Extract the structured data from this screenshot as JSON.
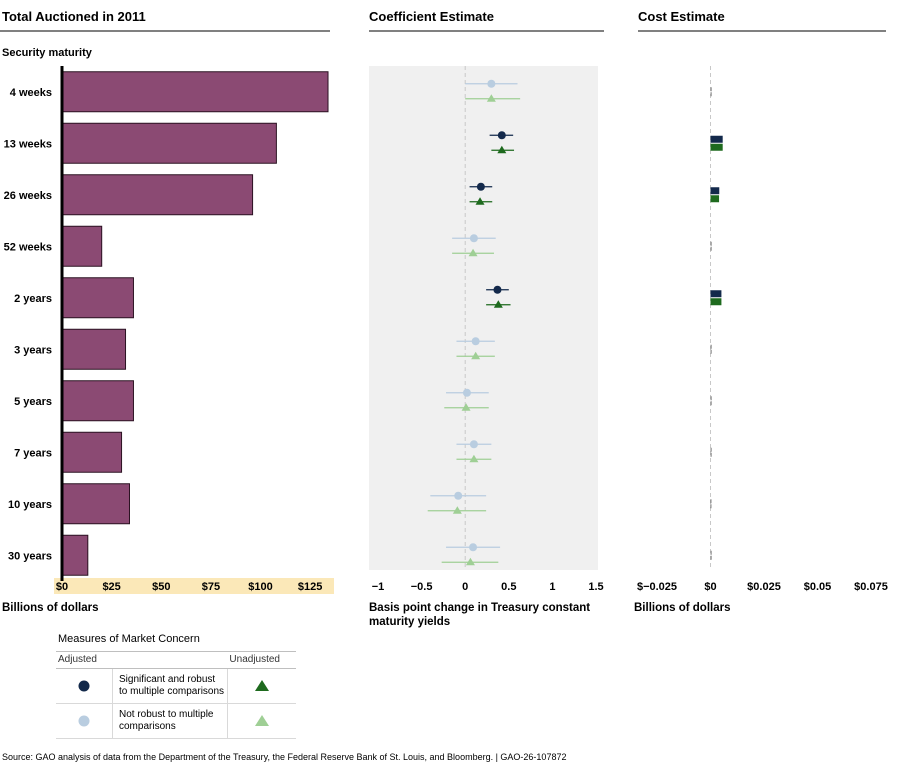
{
  "panels": {
    "auctioned": {
      "title": "Total Auctioned in 2011",
      "category_label": "Security maturity",
      "xlabel": "Billions of dollars"
    },
    "coefficient": {
      "title": "Coefficient Estimate",
      "xlabel_line1": "Basis point change in Treasury constant",
      "xlabel_line2": "maturity yields"
    },
    "cost": {
      "title": "Cost Estimate",
      "xlabel": "Billions of dollars"
    }
  },
  "legend": {
    "title": "Measures of Market Concern",
    "col_adjusted": "Adjusted",
    "col_unadjusted": "Unadjusted",
    "row1_line1": "Significant and robust",
    "row1_line2": "to multiple comparisons",
    "row2_line1": "Not robust to multiple",
    "row2_line2": "comparisons"
  },
  "source": "Source: GAO analysis of data from the Department of the Treasury, the Federal Reserve Bank of St. Louis, and Bloomberg.  |  GAO-26-107872",
  "colors": {
    "bar": "#8b4a73",
    "bar_edge": "#2b1222",
    "sig_adjusted": "#13294b",
    "sig_unadjusted": "#1e6a1e",
    "ns_adjusted": "#b9cde0",
    "ns_unadjusted": "#9fcf95",
    "panel_bg": "#f0f0f0",
    "axis_highlight": "#fbe8b8"
  },
  "chart_data": [
    {
      "type": "bar",
      "orientation": "horizontal",
      "title": "Total Auctioned in 2011",
      "xlabel": "Billions of dollars",
      "categories": [
        "4 weeks",
        "13 weeks",
        "26 weeks",
        "52 weeks",
        "2 years",
        "3 years",
        "5 years",
        "7 years",
        "10 years",
        "30 years"
      ],
      "values": [
        134,
        108,
        96,
        20,
        36,
        32,
        36,
        30,
        34,
        13
      ],
      "xlim": [
        0,
        135
      ],
      "xticks": [
        0,
        25,
        50,
        75,
        100,
        125
      ],
      "xtick_labels": [
        "$0",
        "$25",
        "$50",
        "$75",
        "$100",
        "$125"
      ]
    },
    {
      "type": "scatter",
      "title": "Coefficient Estimate",
      "xlabel": "Basis point change in Treasury constant maturity yields",
      "categories": [
        "4 weeks",
        "13 weeks",
        "26 weeks",
        "52 weeks",
        "2 years",
        "3 years",
        "5 years",
        "7 years",
        "10 years",
        "30 years"
      ],
      "xlim": [
        -1,
        1.5
      ],
      "xticks": [
        -1,
        -0.5,
        0,
        0.5,
        1,
        1.5
      ],
      "xtick_labels": [
        "−1",
        "−0.5",
        "0",
        "0.5",
        "1",
        "1.5"
      ],
      "series": [
        {
          "name": "Adjusted",
          "marker": "circle",
          "values": [
            0.3,
            0.42,
            0.18,
            0.1,
            0.37,
            0.12,
            0.02,
            0.1,
            -0.08,
            0.09
          ],
          "ci_low": [
            0.0,
            0.28,
            0.05,
            -0.15,
            0.24,
            -0.1,
            -0.22,
            -0.1,
            -0.4,
            -0.22
          ],
          "ci_high": [
            0.6,
            0.55,
            0.31,
            0.35,
            0.5,
            0.34,
            0.27,
            0.3,
            0.24,
            0.4
          ],
          "significant": [
            false,
            true,
            true,
            false,
            true,
            false,
            false,
            false,
            false,
            false
          ]
        },
        {
          "name": "Unadjusted",
          "marker": "triangle",
          "values": [
            0.3,
            0.42,
            0.17,
            0.09,
            0.38,
            0.12,
            0.01,
            0.1,
            -0.09,
            0.06
          ],
          "ci_low": [
            0.0,
            0.3,
            0.05,
            -0.15,
            0.24,
            -0.1,
            -0.24,
            -0.1,
            -0.43,
            -0.27
          ],
          "ci_high": [
            0.63,
            0.56,
            0.31,
            0.33,
            0.52,
            0.34,
            0.27,
            0.3,
            0.24,
            0.38
          ],
          "significant": [
            false,
            true,
            true,
            false,
            true,
            false,
            false,
            false,
            false,
            false
          ]
        }
      ]
    },
    {
      "type": "bar",
      "orientation": "horizontal",
      "title": "Cost Estimate",
      "xlabel": "Billions of dollars",
      "categories": [
        "4 weeks",
        "13 weeks",
        "26 weeks",
        "52 weeks",
        "2 years",
        "3 years",
        "5 years",
        "7 years",
        "10 years",
        "30 years"
      ],
      "xlim": [
        -0.025,
        0.075
      ],
      "xticks": [
        -0.025,
        0,
        0.025,
        0.05,
        0.075
      ],
      "xtick_labels": [
        "$−0.025",
        "$0",
        "$0.025",
        "$0.05",
        "$0.075"
      ],
      "series": [
        {
          "name": "Adjusted",
          "values": [
            0.0004,
            0.0057,
            0.0041,
            0.0004,
            0.0051,
            0.0004,
            0.0002,
            0.0002,
            -0.0001,
            0.0003
          ],
          "significant": [
            false,
            true,
            true,
            false,
            true,
            false,
            false,
            false,
            false,
            false
          ]
        },
        {
          "name": "Unadjusted",
          "values": [
            0.0004,
            0.0057,
            0.004,
            0.0004,
            0.0051,
            0.0004,
            0.0001,
            0.0002,
            -0.0001,
            0.0002
          ],
          "significant": [
            false,
            true,
            true,
            false,
            true,
            false,
            false,
            false,
            false,
            false
          ]
        }
      ]
    }
  ]
}
